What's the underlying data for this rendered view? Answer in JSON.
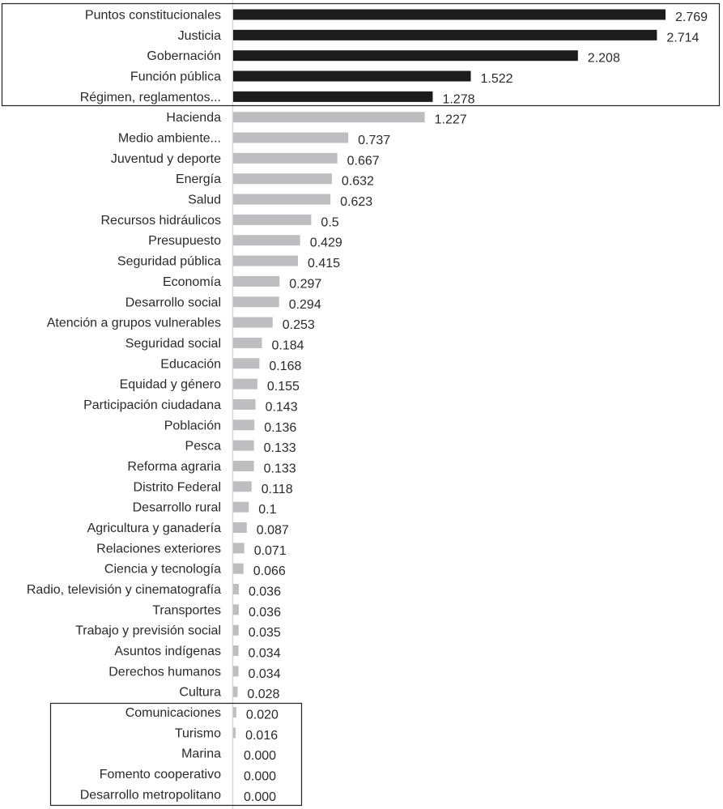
{
  "chart_data": {
    "type": "bar",
    "orientation": "horizontal",
    "title": "",
    "xlabel": "",
    "ylabel": "",
    "xlim": [
      0,
      2.769
    ],
    "grid": false,
    "highlight_color": "#1c1c1c",
    "default_color": "#bebec0",
    "categories": [
      "Puntos constitucionales",
      "Justicia",
      "Gobernación",
      "Función pública",
      "Régimen, reglamentos...",
      "Hacienda",
      "Medio ambiente...",
      "Juventud y deporte",
      "Energía",
      "Salud",
      "Recursos hidráulicos",
      "Presupuesto",
      "Seguridad pública",
      "Economía",
      "Desarrollo social",
      "Atención a grupos vulnerables",
      "Seguridad social",
      "Educación",
      "Equidad y género",
      "Participación ciudadana",
      "Población",
      "Pesca",
      "Reforma agraria",
      "Distrito Federal",
      "Desarrollo rural",
      "Agricultura y ganadería",
      "Relaciones exteriores",
      "Ciencia y tecnología",
      "Radio, televisión y cinematografía",
      "Transportes",
      "Trabajo y previsión social",
      "Asuntos indígenas",
      "Derechos humanos",
      "Cultura",
      "Comunicaciones",
      "Turismo",
      "Marina",
      "Fomento cooperativo",
      "Desarrollo metropolitano"
    ],
    "values": [
      2.769,
      2.714,
      2.208,
      1.522,
      1.278,
      1.227,
      0.737,
      0.667,
      0.632,
      0.623,
      0.5,
      0.429,
      0.415,
      0.297,
      0.294,
      0.253,
      0.184,
      0.168,
      0.155,
      0.143,
      0.136,
      0.133,
      0.133,
      0.118,
      0.1,
      0.087,
      0.071,
      0.066,
      0.036,
      0.036,
      0.035,
      0.034,
      0.034,
      0.028,
      0.02,
      0.016,
      0.0,
      0.0,
      0.0
    ],
    "value_labels": [
      "2.769",
      "2.714",
      "2.208",
      "1.522",
      "1.278",
      "1.227",
      "0.737",
      "0.667",
      "0.632",
      "0.623",
      "0.5",
      "0.429",
      "0.415",
      "0.297",
      "0.294",
      "0.253",
      "0.184",
      "0.168",
      "0.155",
      "0.143",
      "0.136",
      "0.133",
      "0.133",
      "0.118",
      "0.1",
      "0.087",
      "0.071",
      "0.066",
      "0.036",
      "0.036",
      "0.035",
      "0.034",
      "0.034",
      "0.028",
      "0.020",
      "0.016",
      "0.000",
      "0.000",
      "0.000"
    ],
    "highlighted_top": 5,
    "boxed_bottom": 5
  }
}
